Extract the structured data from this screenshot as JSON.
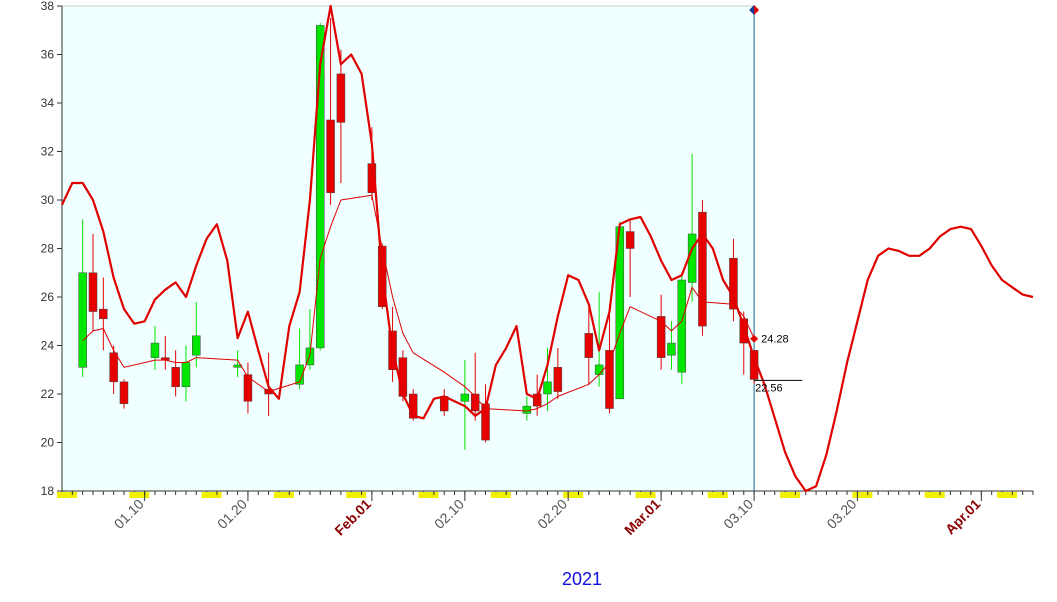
{
  "chart_data": {
    "type": "candlestick",
    "xlabel": "2021",
    "xlim": [
      "2021-01-02",
      "2021-04-06"
    ],
    "xticks": [
      {
        "value": "2021-01-10",
        "label": "01.10"
      },
      {
        "value": "2021-01-20",
        "label": "01.20"
      },
      {
        "value": "2021-02-01",
        "label": "Feb.01"
      },
      {
        "value": "2021-02-10",
        "label": "02.10"
      },
      {
        "value": "2021-02-20",
        "label": "02.20"
      },
      {
        "value": "2021-03-01",
        "label": "Mar.01"
      },
      {
        "value": "2021-03-10",
        "label": "03.10"
      },
      {
        "value": "2021-03-20",
        "label": "03.20"
      },
      {
        "value": "2021-04-01",
        "label": "Apr.01"
      }
    ],
    "ylim": [
      18,
      38
    ],
    "yticks": [
      18,
      20,
      22,
      24,
      26,
      28,
      30,
      32,
      34,
      36,
      38
    ],
    "up_color": "#00e600",
    "down_color": "#e60000",
    "cursor": "2021-03-10",
    "x": [
      "2021-01-04",
      "2021-01-05",
      "2021-01-06",
      "2021-01-07",
      "2021-01-08",
      "2021-01-11",
      "2021-01-12",
      "2021-01-13",
      "2021-01-14",
      "2021-01-15",
      "2021-01-19",
      "2021-01-20",
      "2021-01-22",
      "2021-01-25",
      "2021-01-26",
      "2021-01-27",
      "2021-01-28",
      "2021-01-29",
      "2021-02-01",
      "2021-02-02",
      "2021-02-03",
      "2021-02-04",
      "2021-02-05",
      "2021-02-08",
      "2021-02-10",
      "2021-02-11",
      "2021-02-12",
      "2021-02-16",
      "2021-02-17",
      "2021-02-18",
      "2021-02-19",
      "2021-02-22",
      "2021-02-23",
      "2021-02-24",
      "2021-02-25",
      "2021-02-26",
      "2021-03-01",
      "2021-03-02",
      "2021-03-03",
      "2021-03-04",
      "2021-03-05",
      "2021-03-08",
      "2021-03-09",
      "2021-03-10"
    ],
    "open": [
      23.1,
      27.0,
      25.5,
      23.7,
      22.5,
      23.5,
      23.5,
      23.1,
      22.3,
      23.6,
      23.1,
      22.8,
      22.2,
      22.4,
      23.2,
      23.9,
      33.3,
      35.2,
      31.5,
      28.1,
      24.6,
      23.5,
      22.0,
      21.9,
      21.7,
      22.0,
      21.6,
      21.2,
      22.0,
      22.0,
      23.1,
      24.5,
      22.8,
      23.8,
      21.8,
      28.7,
      25.2,
      23.6,
      22.9,
      26.6,
      29.5,
      27.6,
      25.1,
      23.8
    ],
    "high": [
      29.2,
      28.6,
      26.8,
      24.0,
      22.6,
      24.8,
      24.4,
      23.8,
      24.0,
      25.8,
      23.8,
      23.3,
      23.7,
      24.7,
      25.5,
      37.3,
      37.5,
      36.2,
      33.0,
      28.2,
      25.6,
      23.8,
      22.2,
      22.2,
      23.4,
      23.7,
      22.4,
      21.9,
      22.8,
      23.9,
      23.9,
      25.7,
      26.2,
      25.7,
      29.1,
      29.2,
      26.1,
      25.0,
      27.0,
      31.9,
      30.0,
      28.4,
      25.4,
      23.8
    ],
    "low": [
      22.7,
      24.6,
      23.8,
      22.0,
      21.4,
      23.0,
      23.0,
      21.9,
      21.7,
      23.1,
      22.7,
      21.2,
      21.1,
      22.2,
      23.0,
      23.8,
      29.8,
      30.7,
      30.0,
      25.5,
      22.5,
      21.7,
      20.9,
      21.1,
      19.7,
      20.9,
      20.0,
      20.9,
      21.1,
      21.3,
      21.8,
      22.4,
      22.3,
      21.2,
      21.8,
      26.0,
      23.0,
      23.0,
      22.4,
      25.8,
      24.4,
      25.0,
      22.8,
      22.4
    ],
    "close": [
      27.0,
      25.4,
      25.1,
      22.5,
      21.6,
      24.1,
      23.4,
      22.3,
      23.3,
      24.4,
      23.2,
      21.7,
      22.0,
      23.2,
      23.9,
      37.2,
      30.3,
      33.2,
      30.3,
      25.6,
      23.0,
      21.9,
      21.0,
      21.3,
      22.0,
      21.3,
      20.1,
      21.5,
      21.5,
      22.5,
      22.1,
      23.5,
      23.2,
      21.4,
      28.9,
      28.0,
      23.5,
      24.1,
      26.7,
      28.6,
      24.8,
      25.5,
      24.1,
      22.6
    ],
    "overlays": [
      {
        "color": "#e00000",
        "x": [
          "2021-01-02",
          "2021-01-03",
          "2021-01-04",
          "2021-01-05",
          "2021-01-06",
          "2021-01-07",
          "2021-01-08",
          "2021-01-09",
          "2021-01-10",
          "2021-01-11",
          "2021-01-12",
          "2021-01-13",
          "2021-01-14",
          "2021-01-15",
          "2021-01-16",
          "2021-01-17",
          "2021-01-18",
          "2021-01-19",
          "2021-01-20",
          "2021-01-21",
          "2021-01-22",
          "2021-01-23",
          "2021-01-24",
          "2021-01-25",
          "2021-01-26",
          "2021-01-27",
          "2021-01-28",
          "2021-01-29",
          "2021-01-30",
          "2021-01-31",
          "2021-02-01",
          "2021-02-02",
          "2021-02-03",
          "2021-02-04",
          "2021-02-05",
          "2021-02-06",
          "2021-02-07",
          "2021-02-08",
          "2021-02-09",
          "2021-02-10",
          "2021-02-11",
          "2021-02-12",
          "2021-02-13",
          "2021-02-14",
          "2021-02-15",
          "2021-02-16",
          "2021-02-17",
          "2021-02-18",
          "2021-02-19",
          "2021-02-20",
          "2021-02-21",
          "2021-02-22",
          "2021-02-23",
          "2021-02-24",
          "2021-02-25",
          "2021-02-26",
          "2021-02-27",
          "2021-02-28",
          "2021-03-01",
          "2021-03-02",
          "2021-03-03",
          "2021-03-04",
          "2021-03-05",
          "2021-03-06",
          "2021-03-07",
          "2021-03-08",
          "2021-03-09",
          "2021-03-10",
          "2021-03-11",
          "2021-03-12",
          "2021-03-13",
          "2021-03-14",
          "2021-03-15",
          "2021-03-16",
          "2021-03-17",
          "2021-03-18",
          "2021-03-19",
          "2021-03-20",
          "2021-03-21",
          "2021-03-22",
          "2021-03-23",
          "2021-03-24",
          "2021-03-25",
          "2021-03-26",
          "2021-03-27",
          "2021-03-28",
          "2021-03-29",
          "2021-03-30",
          "2021-03-31",
          "2021-04-01",
          "2021-04-02",
          "2021-04-03",
          "2021-04-04",
          "2021-04-05",
          "2021-04-06"
        ],
        "values": [
          29.8,
          30.7,
          30.7,
          30.0,
          28.7,
          26.8,
          25.5,
          24.9,
          25.0,
          25.9,
          26.3,
          26.6,
          26.0,
          27.3,
          28.4,
          29.0,
          27.5,
          24.3,
          25.4,
          23.8,
          22.3,
          21.8,
          24.8,
          26.2,
          30.0,
          35.6,
          38.0,
          35.6,
          36.0,
          35.2,
          32.3,
          27.0,
          23.8,
          22.0,
          21.1,
          21.0,
          21.8,
          21.9,
          21.7,
          21.5,
          21.1,
          21.4,
          23.2,
          23.9,
          24.8,
          22.0,
          21.8,
          23.2,
          25.2,
          26.9,
          26.7,
          25.7,
          23.8,
          25.4,
          29.0,
          29.2,
          29.3,
          28.5,
          27.5,
          26.7,
          26.9,
          28.0,
          28.6,
          28.0,
          26.7,
          26.0,
          24.8,
          23.5,
          22.4,
          21.0,
          19.6,
          18.6,
          18.0,
          18.2,
          19.5,
          21.3,
          23.3,
          25.0,
          26.7,
          27.7,
          28.0,
          27.9,
          27.7,
          27.7,
          28.0,
          28.5,
          28.8,
          28.9,
          28.8,
          28.1,
          27.3,
          26.7,
          26.4,
          26.1,
          26.0
        ]
      },
      {
        "color": "#e00000",
        "x": [
          "2021-01-04",
          "2021-01-05",
          "2021-01-06",
          "2021-01-07",
          "2021-01-08",
          "2021-01-11",
          "2021-01-12",
          "2021-01-13",
          "2021-01-14",
          "2021-01-15",
          "2021-01-19",
          "2021-01-20",
          "2021-01-22",
          "2021-01-25",
          "2021-01-26",
          "2021-01-27",
          "2021-01-28",
          "2021-01-29",
          "2021-02-01",
          "2021-02-02",
          "2021-02-03",
          "2021-02-04",
          "2021-02-05",
          "2021-02-08",
          "2021-02-10",
          "2021-02-11",
          "2021-02-12",
          "2021-02-16",
          "2021-02-17",
          "2021-02-18",
          "2021-02-19",
          "2021-02-22",
          "2021-02-23",
          "2021-02-24",
          "2021-02-25",
          "2021-02-26",
          "2021-03-01",
          "2021-03-02",
          "2021-03-03",
          "2021-03-04",
          "2021-03-05",
          "2021-03-08",
          "2021-03-09",
          "2021-03-10"
        ],
        "values": [
          24.2,
          24.6,
          24.7,
          23.8,
          23.1,
          23.4,
          23.4,
          23.3,
          23.3,
          23.5,
          23.4,
          22.7,
          22.1,
          22.5,
          23.6,
          27.6,
          28.9,
          30.0,
          30.2,
          28.0,
          26.0,
          24.5,
          23.7,
          22.9,
          22.3,
          21.9,
          21.4,
          21.3,
          21.4,
          21.6,
          21.9,
          22.4,
          22.8,
          23.3,
          24.5,
          25.6,
          25.0,
          24.6,
          25.0,
          26.4,
          25.8,
          25.7,
          25.2,
          24.3
        ]
      }
    ],
    "annotations": [
      {
        "x": "2021-03-10",
        "value": 24.28,
        "label": "24.28"
      },
      {
        "x": "2021-03-10",
        "value": 22.56,
        "label": "22.56"
      }
    ]
  }
}
